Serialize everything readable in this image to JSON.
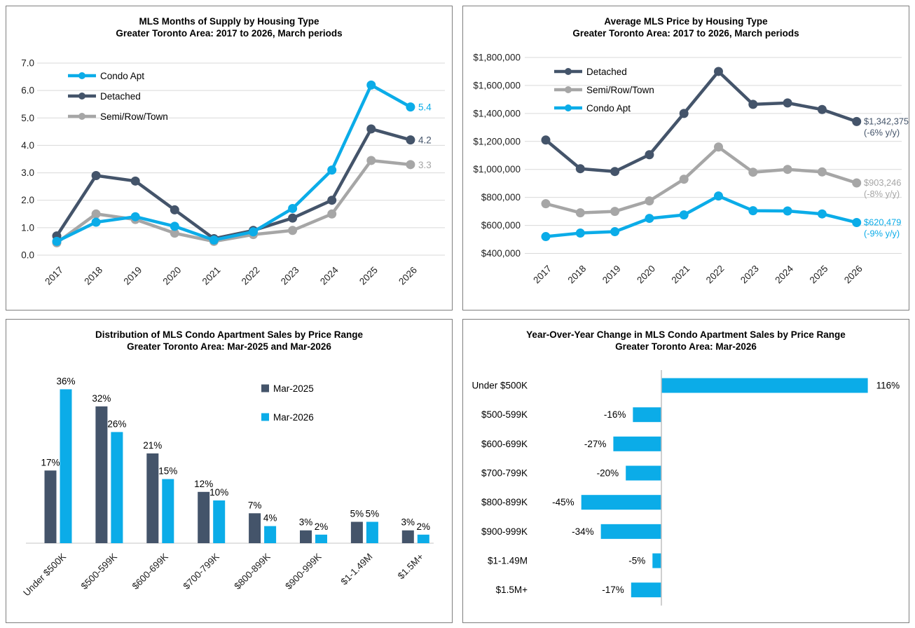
{
  "colors": {
    "condo_blue": "#0BACE8",
    "detached_navy": "#44546A",
    "semi_gray": "#A6A6A6",
    "gridline": "#D9D9D9",
    "axis_line": "#BFBFBF",
    "tick_text": "#1F1F1F",
    "label_text": "#000000",
    "panel_border": "#7F7F7F"
  },
  "chart_data": [
    {
      "type": "line",
      "title": "MLS Months of Supply by Housing Type",
      "subtitle": "Greater Toronto Area: 2017 to 2026, March periods",
      "categories": [
        "2017",
        "2018",
        "2019",
        "2020",
        "2021",
        "2022",
        "2023",
        "2024",
        "2025",
        "2026"
      ],
      "series": [
        {
          "name": "Condo Apt",
          "color_key": "condo_blue",
          "values": [
            0.5,
            1.2,
            1.4,
            1.05,
            0.55,
            0.85,
            1.7,
            3.1,
            6.2,
            5.4
          ],
          "end_label": [
            "5.4"
          ]
        },
        {
          "name": "Detached",
          "color_key": "detached_navy",
          "values": [
            0.7,
            2.9,
            2.7,
            1.65,
            0.6,
            0.9,
            1.35,
            2.0,
            4.6,
            4.2
          ],
          "end_label": [
            "4.2"
          ]
        },
        {
          "name": "Semi/Row/Town",
          "color_key": "semi_gray",
          "values": [
            0.45,
            1.5,
            1.3,
            0.8,
            0.5,
            0.75,
            0.9,
            1.5,
            3.45,
            3.3
          ],
          "end_label": [
            "3.3"
          ]
        }
      ],
      "ylim": [
        0,
        7
      ],
      "ytick_step": 1,
      "ytick_format": "decimal1",
      "grid": "horizontal",
      "legend_position": "top-left"
    },
    {
      "type": "line",
      "title": "Average MLS Price by Housing Type",
      "subtitle": "Greater Toronto Area: 2017 to 2026, March periods",
      "categories": [
        "2017",
        "2018",
        "2019",
        "2020",
        "2021",
        "2022",
        "2023",
        "2024",
        "2025",
        "2026"
      ],
      "series": [
        {
          "name": "Detached",
          "color_key": "detached_navy",
          "values": [
            1210000,
            1005000,
            985000,
            1105000,
            1400000,
            1700000,
            1465000,
            1475000,
            1428000,
            1342375
          ],
          "end_label": [
            "$1,342,375",
            "(-6% y/y)"
          ]
        },
        {
          "name": "Semi/Row/Town",
          "color_key": "semi_gray",
          "values": [
            755000,
            690000,
            700000,
            775000,
            930000,
            1160000,
            980000,
            1000000,
            982000,
            903246
          ],
          "end_label": [
            "$903,246",
            "(-8% y/y)"
          ]
        },
        {
          "name": "Condo Apt",
          "color_key": "condo_blue",
          "values": [
            520000,
            545000,
            555000,
            650000,
            675000,
            810000,
            705000,
            703000,
            682000,
            620479
          ],
          "end_label": [
            "$620,479",
            "(-9% y/y)"
          ]
        }
      ],
      "ylim": [
        400000,
        1800000
      ],
      "ytick_step": 200000,
      "ytick_format": "currency",
      "grid": "horizontal",
      "legend_position": "top-left"
    },
    {
      "type": "grouped_bar",
      "title": "Distribution of MLS Condo Apartment Sales by Price Range",
      "subtitle": "Greater Toronto Area: Mar-2025 and Mar-2026",
      "categories": [
        "Under $500K",
        "$500-599K",
        "$600-699K",
        "$700-799K",
        "$800-899K",
        "$900-999K",
        "$1-1.49M",
        "$1.5M+"
      ],
      "series": [
        {
          "name": "Mar-2025",
          "color_key": "detached_navy",
          "values": [
            17,
            32,
            21,
            12,
            7,
            3,
            5,
            3
          ]
        },
        {
          "name": "Mar-2026",
          "color_key": "condo_blue",
          "values": [
            36,
            26,
            15,
            10,
            4,
            2,
            5,
            2
          ]
        }
      ],
      "value_suffix": "%",
      "legend_position": "top-right"
    },
    {
      "type": "hbar",
      "title": "Year-Over-Year Change in MLS Condo Apartment Sales by Price Range",
      "subtitle": "Greater Toronto Area: Mar-2026",
      "categories": [
        "Under $500K",
        "$500-599K",
        "$600-699K",
        "$700-799K",
        "$800-899K",
        "$900-999K",
        "$1-1.49M",
        "$1.5M+"
      ],
      "values": [
        116,
        -16,
        -27,
        -20,
        -45,
        -34,
        -5,
        -17
      ],
      "value_suffix": "%",
      "bar_color_key": "condo_blue"
    }
  ]
}
